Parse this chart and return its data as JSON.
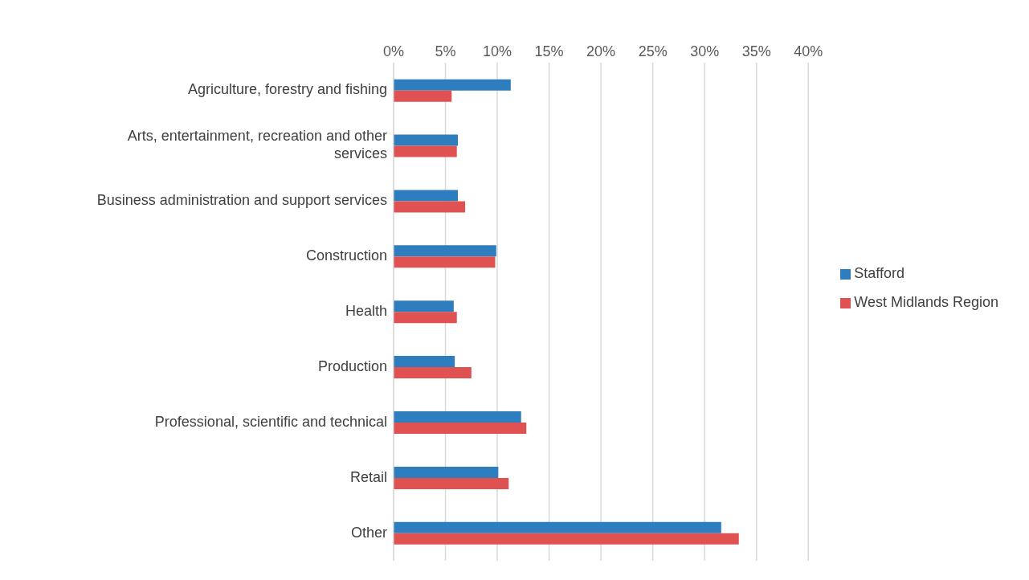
{
  "chart_data": {
    "type": "bar",
    "orientation": "horizontal",
    "categories": [
      "Agriculture, forestry and fishing",
      "Arts, entertainment, recreation and other services",
      "Business administration and support services",
      "Construction",
      "Health",
      "Production",
      "Professional, scientific and technical",
      "Retail",
      "Other"
    ],
    "series": [
      {
        "name": "Stafford",
        "color": "#2e7ebf",
        "values": [
          11.3,
          6.2,
          6.2,
          9.9,
          5.8,
          5.9,
          12.3,
          10.1,
          31.6
        ]
      },
      {
        "name": "West Midlands Region",
        "color": "#e05252",
        "values": [
          5.6,
          6.1,
          6.9,
          9.8,
          6.1,
          7.5,
          12.8,
          11.1,
          33.3
        ]
      }
    ],
    "xlim": [
      0,
      40
    ],
    "xticks": [
      {
        "value": 0,
        "label": "0%"
      },
      {
        "value": 5,
        "label": "5%"
      },
      {
        "value": 10,
        "label": "10%"
      },
      {
        "value": 15,
        "label": "15%"
      },
      {
        "value": 20,
        "label": "20%"
      },
      {
        "value": 25,
        "label": "25%"
      },
      {
        "value": 30,
        "label": "30%"
      },
      {
        "value": 35,
        "label": "35%"
      },
      {
        "value": 40,
        "label": "40%"
      }
    ],
    "grid": "x",
    "legend": "right"
  }
}
